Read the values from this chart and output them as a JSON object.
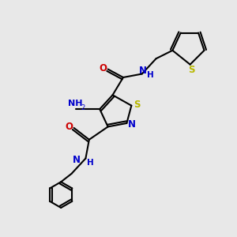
{
  "bg_color": "#e8e8e8",
  "bond_color": "#000000",
  "N_color": "#0000cc",
  "O_color": "#cc0000",
  "S_color": "#b8b800",
  "lw": 1.5,
  "xlim": [
    0,
    10
  ],
  "ylim": [
    0,
    10
  ]
}
